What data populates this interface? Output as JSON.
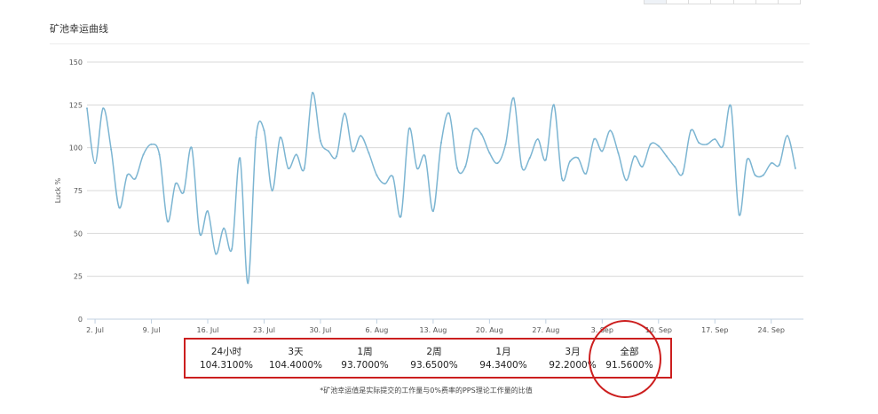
{
  "panel": {
    "title": "矿池幸运曲线"
  },
  "chart_data": {
    "type": "line",
    "title": "",
    "ylabel": "Luck %",
    "xlabel": "",
    "ylim": [
      0,
      150
    ],
    "yticks": [
      0,
      25,
      50,
      75,
      100,
      125,
      150
    ],
    "xlim": [
      "2018-07-01",
      "2018-09-28"
    ],
    "xticks": [
      {
        "date": "2018-07-02",
        "label": "2. Jul"
      },
      {
        "date": "2018-07-09",
        "label": "9. Jul"
      },
      {
        "date": "2018-07-16",
        "label": "16. Jul"
      },
      {
        "date": "2018-07-23",
        "label": "23. Jul"
      },
      {
        "date": "2018-07-30",
        "label": "30. Jul"
      },
      {
        "date": "2018-08-06",
        "label": "6. Aug"
      },
      {
        "date": "2018-08-13",
        "label": "13. Aug"
      },
      {
        "date": "2018-08-20",
        "label": "20. Aug"
      },
      {
        "date": "2018-08-27",
        "label": "27. Aug"
      },
      {
        "date": "2018-09-03",
        "label": "3. Sep"
      },
      {
        "date": "2018-09-10",
        "label": "10. Sep"
      },
      {
        "date": "2018-09-17",
        "label": "17. Sep"
      },
      {
        "date": "2018-09-24",
        "label": "24. Sep"
      }
    ],
    "grid": true,
    "legend": "none",
    "line_color": "#7cb5d2",
    "series": [
      {
        "x": [
          "2018-07-01",
          "2018-07-02",
          "2018-07-03",
          "2018-07-04",
          "2018-07-05",
          "2018-07-06",
          "2018-07-07",
          "2018-07-08",
          "2018-07-09",
          "2018-07-10",
          "2018-07-11",
          "2018-07-12",
          "2018-07-13",
          "2018-07-14",
          "2018-07-15",
          "2018-07-16",
          "2018-07-17",
          "2018-07-18",
          "2018-07-19",
          "2018-07-20",
          "2018-07-21",
          "2018-07-22",
          "2018-07-23",
          "2018-07-24",
          "2018-07-25",
          "2018-07-26",
          "2018-07-27",
          "2018-07-28",
          "2018-07-29",
          "2018-07-30",
          "2018-07-31",
          "2018-08-01",
          "2018-08-02",
          "2018-08-03",
          "2018-08-04",
          "2018-08-05",
          "2018-08-06",
          "2018-08-07",
          "2018-08-08",
          "2018-08-09",
          "2018-08-10",
          "2018-08-11",
          "2018-08-12",
          "2018-08-13",
          "2018-08-14",
          "2018-08-15",
          "2018-08-16",
          "2018-08-17",
          "2018-08-18",
          "2018-08-19",
          "2018-08-20",
          "2018-08-21",
          "2018-08-22",
          "2018-08-23",
          "2018-08-24",
          "2018-08-25",
          "2018-08-26",
          "2018-08-27",
          "2018-08-28",
          "2018-08-29",
          "2018-08-30",
          "2018-08-31",
          "2018-09-01",
          "2018-09-02",
          "2018-09-03",
          "2018-09-04",
          "2018-09-05",
          "2018-09-06",
          "2018-09-07",
          "2018-09-08",
          "2018-09-09",
          "2018-09-10",
          "2018-09-11",
          "2018-09-12",
          "2018-09-13",
          "2018-09-14",
          "2018-09-15",
          "2018-09-16",
          "2018-09-17",
          "2018-09-18",
          "2018-09-19",
          "2018-09-20",
          "2018-09-21",
          "2018-09-22",
          "2018-09-23",
          "2018-09-24",
          "2018-09-25",
          "2018-09-26",
          "2018-09-27"
        ],
        "values": [
          123,
          91,
          123,
          99,
          65,
          84,
          82,
          96,
          102,
          96,
          57,
          79,
          74,
          100,
          50,
          63,
          38,
          53,
          41,
          94,
          21,
          106,
          110,
          75,
          106,
          88,
          96,
          88,
          132,
          104,
          98,
          95,
          120,
          98,
          107,
          97,
          84,
          79,
          83,
          60,
          111,
          88,
          95,
          63,
          103,
          120,
          88,
          89,
          110,
          108,
          97,
          91,
          102,
          129,
          89,
          94,
          105,
          93,
          125,
          82,
          92,
          94,
          85,
          105,
          98,
          110,
          97,
          81,
          95,
          89,
          102,
          101,
          95,
          89,
          85,
          110,
          103,
          102,
          105,
          101,
          124,
          61,
          93,
          84,
          84,
          91,
          90,
          107,
          88
        ]
      }
    ]
  },
  "stats": [
    {
      "label": "24小时",
      "value": "104.3100%"
    },
    {
      "label": "3天",
      "value": "104.4000%"
    },
    {
      "label": "1周",
      "value": "93.7000%"
    },
    {
      "label": "2周",
      "value": "93.6500%"
    },
    {
      "label": "1月",
      "value": "94.3400%"
    },
    {
      "label": "3月",
      "value": "92.2000%"
    },
    {
      "label": "全部",
      "value": "91.5600%"
    }
  ],
  "footnote": "*矿池幸运值是实际提交的工作量与0%费率的PPS理论工作量的比值"
}
